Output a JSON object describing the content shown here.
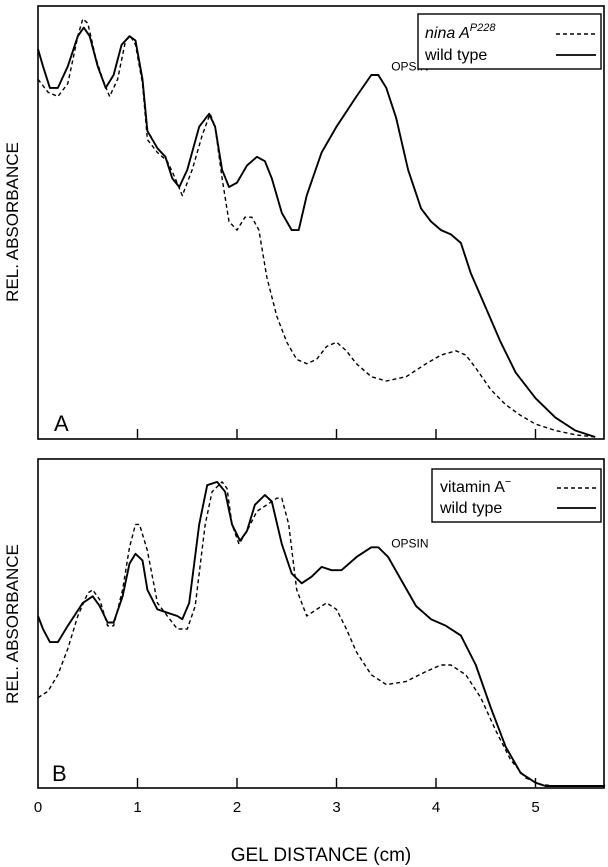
{
  "chart_data": [
    {
      "panel_label": "A",
      "type": "line",
      "xlabel": "",
      "ylabel": "REL. ABSORBANCE",
      "xlim": [
        0,
        5.7
      ],
      "ylim": [
        0,
        1
      ],
      "legend_placement": "top-right",
      "annotations": [
        {
          "text": "OPSIN",
          "x": 3.55,
          "y": 0.85
        }
      ],
      "series": [
        {
          "name": "nina A",
          "name_superscript": "P228",
          "style": "dashed",
          "points": [
            [
              0.0,
              0.83
            ],
            [
              0.1,
              0.8
            ],
            [
              0.2,
              0.79
            ],
            [
              0.3,
              0.82
            ],
            [
              0.4,
              0.93
            ],
            [
              0.45,
              0.97
            ],
            [
              0.5,
              0.96
            ],
            [
              0.58,
              0.88
            ],
            [
              0.65,
              0.83
            ],
            [
              0.72,
              0.79
            ],
            [
              0.8,
              0.83
            ],
            [
              0.88,
              0.92
            ],
            [
              0.93,
              0.93
            ],
            [
              0.98,
              0.91
            ],
            [
              1.05,
              0.82
            ],
            [
              1.1,
              0.69
            ],
            [
              1.2,
              0.66
            ],
            [
              1.3,
              0.64
            ],
            [
              1.38,
              0.6
            ],
            [
              1.45,
              0.56
            ],
            [
              1.55,
              0.62
            ],
            [
              1.65,
              0.7
            ],
            [
              1.73,
              0.75
            ],
            [
              1.78,
              0.72
            ],
            [
              1.85,
              0.6
            ],
            [
              1.92,
              0.5
            ],
            [
              2.0,
              0.48
            ],
            [
              2.08,
              0.51
            ],
            [
              2.15,
              0.51
            ],
            [
              2.22,
              0.48
            ],
            [
              2.3,
              0.37
            ],
            [
              2.4,
              0.28
            ],
            [
              2.5,
              0.22
            ],
            [
              2.6,
              0.18
            ],
            [
              2.7,
              0.17
            ],
            [
              2.8,
              0.18
            ],
            [
              2.9,
              0.21
            ],
            [
              3.0,
              0.22
            ],
            [
              3.1,
              0.2
            ],
            [
              3.2,
              0.17
            ],
            [
              3.35,
              0.14
            ],
            [
              3.5,
              0.13
            ],
            [
              3.7,
              0.14
            ],
            [
              3.9,
              0.17
            ],
            [
              4.05,
              0.19
            ],
            [
              4.2,
              0.2
            ],
            [
              4.3,
              0.19
            ],
            [
              4.4,
              0.16
            ],
            [
              4.55,
              0.11
            ],
            [
              4.7,
              0.075
            ],
            [
              4.85,
              0.05
            ],
            [
              5.0,
              0.03
            ],
            [
              5.2,
              0.015
            ],
            [
              5.4,
              0.005
            ],
            [
              5.6,
              0.0
            ]
          ]
        },
        {
          "name": "wild type",
          "style": "solid",
          "points": [
            [
              0.0,
              0.9
            ],
            [
              0.05,
              0.86
            ],
            [
              0.12,
              0.81
            ],
            [
              0.2,
              0.81
            ],
            [
              0.3,
              0.86
            ],
            [
              0.4,
              0.93
            ],
            [
              0.46,
              0.95
            ],
            [
              0.52,
              0.93
            ],
            [
              0.6,
              0.86
            ],
            [
              0.68,
              0.81
            ],
            [
              0.76,
              0.84
            ],
            [
              0.84,
              0.91
            ],
            [
              0.92,
              0.93
            ],
            [
              0.98,
              0.92
            ],
            [
              1.05,
              0.83
            ],
            [
              1.1,
              0.71
            ],
            [
              1.2,
              0.67
            ],
            [
              1.28,
              0.65
            ],
            [
              1.35,
              0.6
            ],
            [
              1.42,
              0.58
            ],
            [
              1.5,
              0.62
            ],
            [
              1.62,
              0.72
            ],
            [
              1.72,
              0.75
            ],
            [
              1.78,
              0.72
            ],
            [
              1.85,
              0.62
            ],
            [
              1.92,
              0.58
            ],
            [
              2.0,
              0.59
            ],
            [
              2.1,
              0.63
            ],
            [
              2.2,
              0.65
            ],
            [
              2.28,
              0.64
            ],
            [
              2.35,
              0.6
            ],
            [
              2.45,
              0.52
            ],
            [
              2.55,
              0.48
            ],
            [
              2.62,
              0.48
            ],
            [
              2.7,
              0.56
            ],
            [
              2.85,
              0.66
            ],
            [
              3.0,
              0.72
            ],
            [
              3.2,
              0.79
            ],
            [
              3.35,
              0.84
            ],
            [
              3.42,
              0.84
            ],
            [
              3.5,
              0.81
            ],
            [
              3.6,
              0.74
            ],
            [
              3.72,
              0.62
            ],
            [
              3.85,
              0.53
            ],
            [
              3.95,
              0.5
            ],
            [
              4.05,
              0.48
            ],
            [
              4.15,
              0.47
            ],
            [
              4.25,
              0.45
            ],
            [
              4.35,
              0.38
            ],
            [
              4.5,
              0.3
            ],
            [
              4.65,
              0.22
            ],
            [
              4.8,
              0.15
            ],
            [
              5.0,
              0.09
            ],
            [
              5.2,
              0.045
            ],
            [
              5.4,
              0.015
            ],
            [
              5.6,
              0.0
            ]
          ]
        }
      ]
    },
    {
      "panel_label": "B",
      "type": "line",
      "xlabel": "GEL DISTANCE (cm)",
      "ylabel": "REL. ABSORBANCE",
      "xlim": [
        0,
        5.7
      ],
      "ylim": [
        0,
        1
      ],
      "xticks": [
        "0",
        "1",
        "2",
        "3",
        "4",
        "5"
      ],
      "legend_placement": "top-right",
      "annotations": [
        {
          "text": "OPSIN",
          "x": 3.55,
          "y": 0.73
        }
      ],
      "series": [
        {
          "name": "vitamin A",
          "name_superscript": "−",
          "style": "dashed",
          "points": [
            [
              0.0,
              0.27
            ],
            [
              0.1,
              0.29
            ],
            [
              0.2,
              0.34
            ],
            [
              0.3,
              0.42
            ],
            [
              0.4,
              0.52
            ],
            [
              0.5,
              0.59
            ],
            [
              0.55,
              0.6
            ],
            [
              0.62,
              0.57
            ],
            [
              0.7,
              0.49
            ],
            [
              0.76,
              0.49
            ],
            [
              0.85,
              0.6
            ],
            [
              0.92,
              0.73
            ],
            [
              0.98,
              0.8
            ],
            [
              1.02,
              0.8
            ],
            [
              1.1,
              0.72
            ],
            [
              1.2,
              0.56
            ],
            [
              1.3,
              0.52
            ],
            [
              1.4,
              0.48
            ],
            [
              1.5,
              0.48
            ],
            [
              1.58,
              0.55
            ],
            [
              1.68,
              0.8
            ],
            [
              1.75,
              0.9
            ],
            [
              1.85,
              0.93
            ],
            [
              1.9,
              0.91
            ],
            [
              1.95,
              0.8
            ],
            [
              2.02,
              0.74
            ],
            [
              2.1,
              0.78
            ],
            [
              2.2,
              0.84
            ],
            [
              2.3,
              0.86
            ],
            [
              2.4,
              0.88
            ],
            [
              2.45,
              0.88
            ],
            [
              2.52,
              0.8
            ],
            [
              2.6,
              0.6
            ],
            [
              2.7,
              0.52
            ],
            [
              2.8,
              0.54
            ],
            [
              2.9,
              0.56
            ],
            [
              3.0,
              0.54
            ],
            [
              3.1,
              0.48
            ],
            [
              3.2,
              0.41
            ],
            [
              3.35,
              0.34
            ],
            [
              3.5,
              0.31
            ],
            [
              3.7,
              0.32
            ],
            [
              3.9,
              0.35
            ],
            [
              4.05,
              0.37
            ],
            [
              4.15,
              0.37
            ],
            [
              4.3,
              0.34
            ],
            [
              4.45,
              0.27
            ],
            [
              4.6,
              0.17
            ],
            [
              4.75,
              0.08
            ],
            [
              4.9,
              0.025
            ],
            [
              5.05,
              0.005
            ],
            [
              5.2,
              0.0
            ],
            [
              5.7,
              0.0
            ]
          ]
        },
        {
          "name": "wild type",
          "style": "solid",
          "points": [
            [
              0.0,
              0.52
            ],
            [
              0.05,
              0.48
            ],
            [
              0.12,
              0.44
            ],
            [
              0.2,
              0.44
            ],
            [
              0.3,
              0.49
            ],
            [
              0.45,
              0.56
            ],
            [
              0.55,
              0.58
            ],
            [
              0.62,
              0.55
            ],
            [
              0.7,
              0.5
            ],
            [
              0.76,
              0.5
            ],
            [
              0.85,
              0.58
            ],
            [
              0.92,
              0.68
            ],
            [
              0.98,
              0.71
            ],
            [
              1.05,
              0.69
            ],
            [
              1.1,
              0.6
            ],
            [
              1.2,
              0.54
            ],
            [
              1.3,
              0.53
            ],
            [
              1.4,
              0.52
            ],
            [
              1.45,
              0.51
            ],
            [
              1.52,
              0.56
            ],
            [
              1.62,
              0.8
            ],
            [
              1.7,
              0.92
            ],
            [
              1.8,
              0.93
            ],
            [
              1.88,
              0.9
            ],
            [
              1.95,
              0.8
            ],
            [
              2.03,
              0.75
            ],
            [
              2.1,
              0.78
            ],
            [
              2.18,
              0.86
            ],
            [
              2.28,
              0.89
            ],
            [
              2.35,
              0.87
            ],
            [
              2.45,
              0.74
            ],
            [
              2.55,
              0.65
            ],
            [
              2.65,
              0.62
            ],
            [
              2.75,
              0.64
            ],
            [
              2.85,
              0.67
            ],
            [
              2.95,
              0.66
            ],
            [
              3.05,
              0.66
            ],
            [
              3.2,
              0.7
            ],
            [
              3.35,
              0.73
            ],
            [
              3.42,
              0.73
            ],
            [
              3.52,
              0.7
            ],
            [
              3.65,
              0.63
            ],
            [
              3.8,
              0.55
            ],
            [
              3.95,
              0.51
            ],
            [
              4.1,
              0.49
            ],
            [
              4.25,
              0.46
            ],
            [
              4.4,
              0.37
            ],
            [
              4.55,
              0.24
            ],
            [
              4.7,
              0.12
            ],
            [
              4.85,
              0.04
            ],
            [
              5.0,
              0.01
            ],
            [
              5.1,
              0.0
            ],
            [
              5.7,
              0.0
            ]
          ]
        }
      ]
    }
  ]
}
